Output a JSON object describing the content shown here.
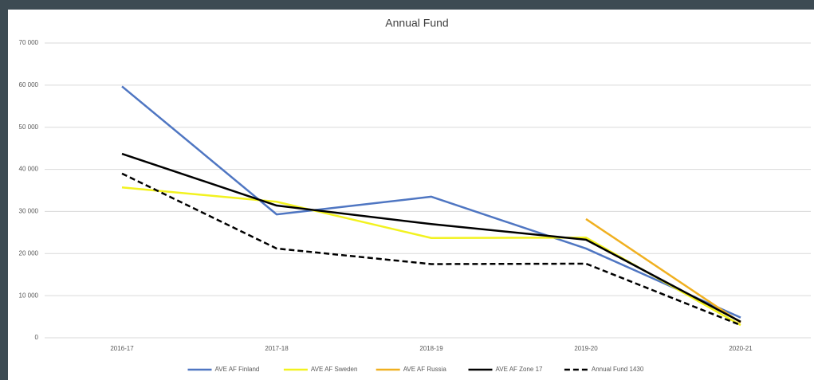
{
  "chart_data": {
    "type": "line",
    "title": "Annual Fund",
    "categories": [
      "2016-17",
      "2017-18",
      "2018-19",
      "2019-20",
      "2020-21"
    ],
    "series": [
      {
        "name": "AVE AF Finland",
        "color": "#4f76c2",
        "values": [
          59700,
          29300,
          33500,
          21200,
          4800
        ]
      },
      {
        "name": "AVE AF Sweden",
        "color": "#f2f21f",
        "values": [
          35700,
          32300,
          23700,
          23800,
          3000
        ]
      },
      {
        "name": "AVE AF Russia",
        "color": "#f0b020",
        "values": [
          null,
          null,
          null,
          28200,
          3600
        ]
      },
      {
        "name": "AVE AF Zone 17",
        "color": "#000000",
        "values": [
          43700,
          31400,
          27000,
          23300,
          3800
        ]
      },
      {
        "name": "Annual Fund 1430",
        "color": "#000000",
        "dash": true,
        "values": [
          39000,
          21200,
          17500,
          17600,
          3000
        ]
      }
    ],
    "ylim": [
      0,
      70000
    ],
    "yticks": [
      {
        "value": 0,
        "label": "0"
      },
      {
        "value": 10000,
        "label": "10 000"
      },
      {
        "value": 20000,
        "label": "20 000"
      },
      {
        "value": 30000,
        "label": "30 000"
      },
      {
        "value": 40000,
        "label": "40 000"
      },
      {
        "value": 50000,
        "label": "50 000"
      },
      {
        "value": 60000,
        "label": "60 000"
      },
      {
        "value": 70000,
        "label": "70 000"
      }
    ],
    "grid": true,
    "legend": "bottom"
  }
}
